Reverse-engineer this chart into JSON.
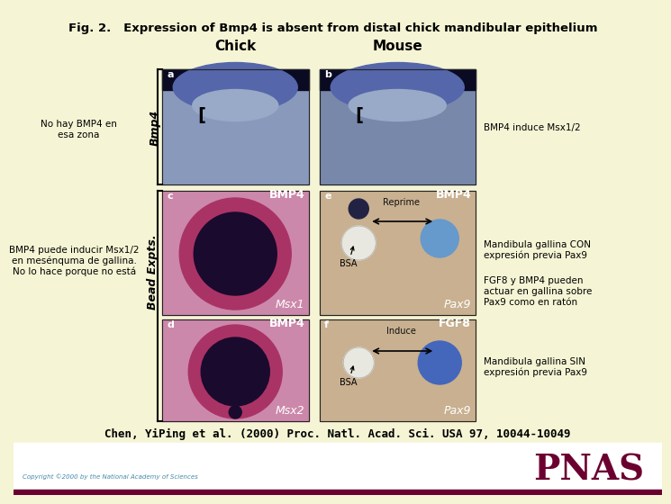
{
  "title": "Fig. 2.   Expression of Bmp4 is absent from distal chick mandibular epithelium",
  "background_color": "#f5f5d5",
  "bottom_bar_color": "#6b0030",
  "pnas_color": "#6b0030",
  "pnas_text": "PNAS",
  "copyright_text": "Copyright ©2000 by the National Academy of Sciences",
  "citation": "Chen, YiPing et al. (2000) Proc. Natl. Acad. Sci. USA 97, 10044-10049",
  "chick_label": "Chick",
  "mouse_label": "Mouse",
  "bmp4_italic_label": "Bmp4",
  "bead_expts_label": "Bead Expts.",
  "left_text_top": [
    "No hay BMP4 en",
    "esa zona"
  ],
  "left_text_bottom": [
    "BMP4 puede inducir Msx1/2",
    "en mesénquma de gallina.",
    "No lo hace porque no está"
  ],
  "right_text_1": "BMP4 induce Msx1/2",
  "right_text_2": [
    "Mandibula gallina CON",
    "expresión previa Pax9"
  ],
  "right_text_3": [
    "FGF8 y BMP4 pueden",
    "actuar en gallina sobre",
    "Pax9 como en ratón"
  ],
  "right_text_4": [
    "Mandibula gallina SIN",
    "expresión previa Pax9"
  ],
  "reprime_label": "Reprime",
  "induce_label": "Induce",
  "bsa_label": "BSA",
  "msx1_label": "Msx1",
  "msx2_label": "Msx2",
  "pax9_label": "Pax9",
  "bmp4_label": "BMP4",
  "fgf8_label": "FGF8"
}
